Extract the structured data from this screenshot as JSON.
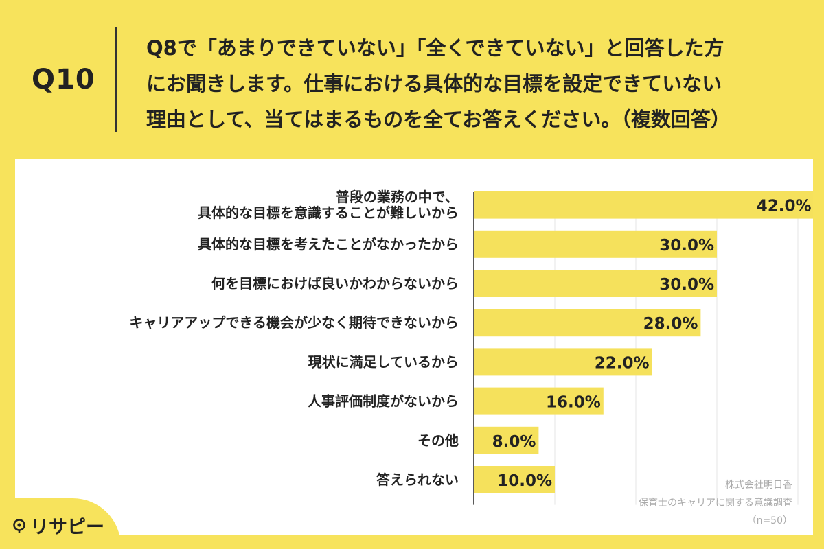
{
  "question": {
    "number": "Q10",
    "lines": [
      "Q8で「あまりできていない」「全くできていない」と回答した方",
      "にお聞きします。仕事における具体的な目標を設定できていない",
      "理由として、当てはまるものを全てお答えください。（複数回答）"
    ]
  },
  "chart_data": {
    "type": "bar",
    "orientation": "horizontal",
    "categories": [
      [
        "普段の業務の中で、",
        "具体的な目標を意識することが難しいから"
      ],
      [
        "具体的な目標を考えたことがなかったから"
      ],
      [
        "何を目標におけば良いかわからないから"
      ],
      [
        "キャリアアップできる機会が少なく期待できないから"
      ],
      [
        "現状に満足しているから"
      ],
      [
        "人事評価制度がないから"
      ],
      [
        "その他"
      ],
      [
        "答えられない"
      ]
    ],
    "values": [
      42.0,
      30.0,
      30.0,
      28.0,
      22.0,
      16.0,
      8.0,
      10.0
    ],
    "value_labels": [
      "42.0%",
      "30.0%",
      "30.0%",
      "28.0%",
      "22.0%",
      "16.0%",
      "8.0%",
      "10.0%"
    ],
    "xlim": [
      0,
      50
    ],
    "grid": true,
    "bar_color": "#f5e15c"
  },
  "credit": {
    "company": "株式会社明日香",
    "survey": "保育士のキャリアに関する意識調査",
    "n": "（n=50）"
  },
  "logo": {
    "text": "リサピー",
    "icon": "location-pin-icon"
  },
  "colors": {
    "background": "#f7e35c",
    "panel": "#ffffff",
    "text": "#222222",
    "grid": "#e6e6e6"
  }
}
